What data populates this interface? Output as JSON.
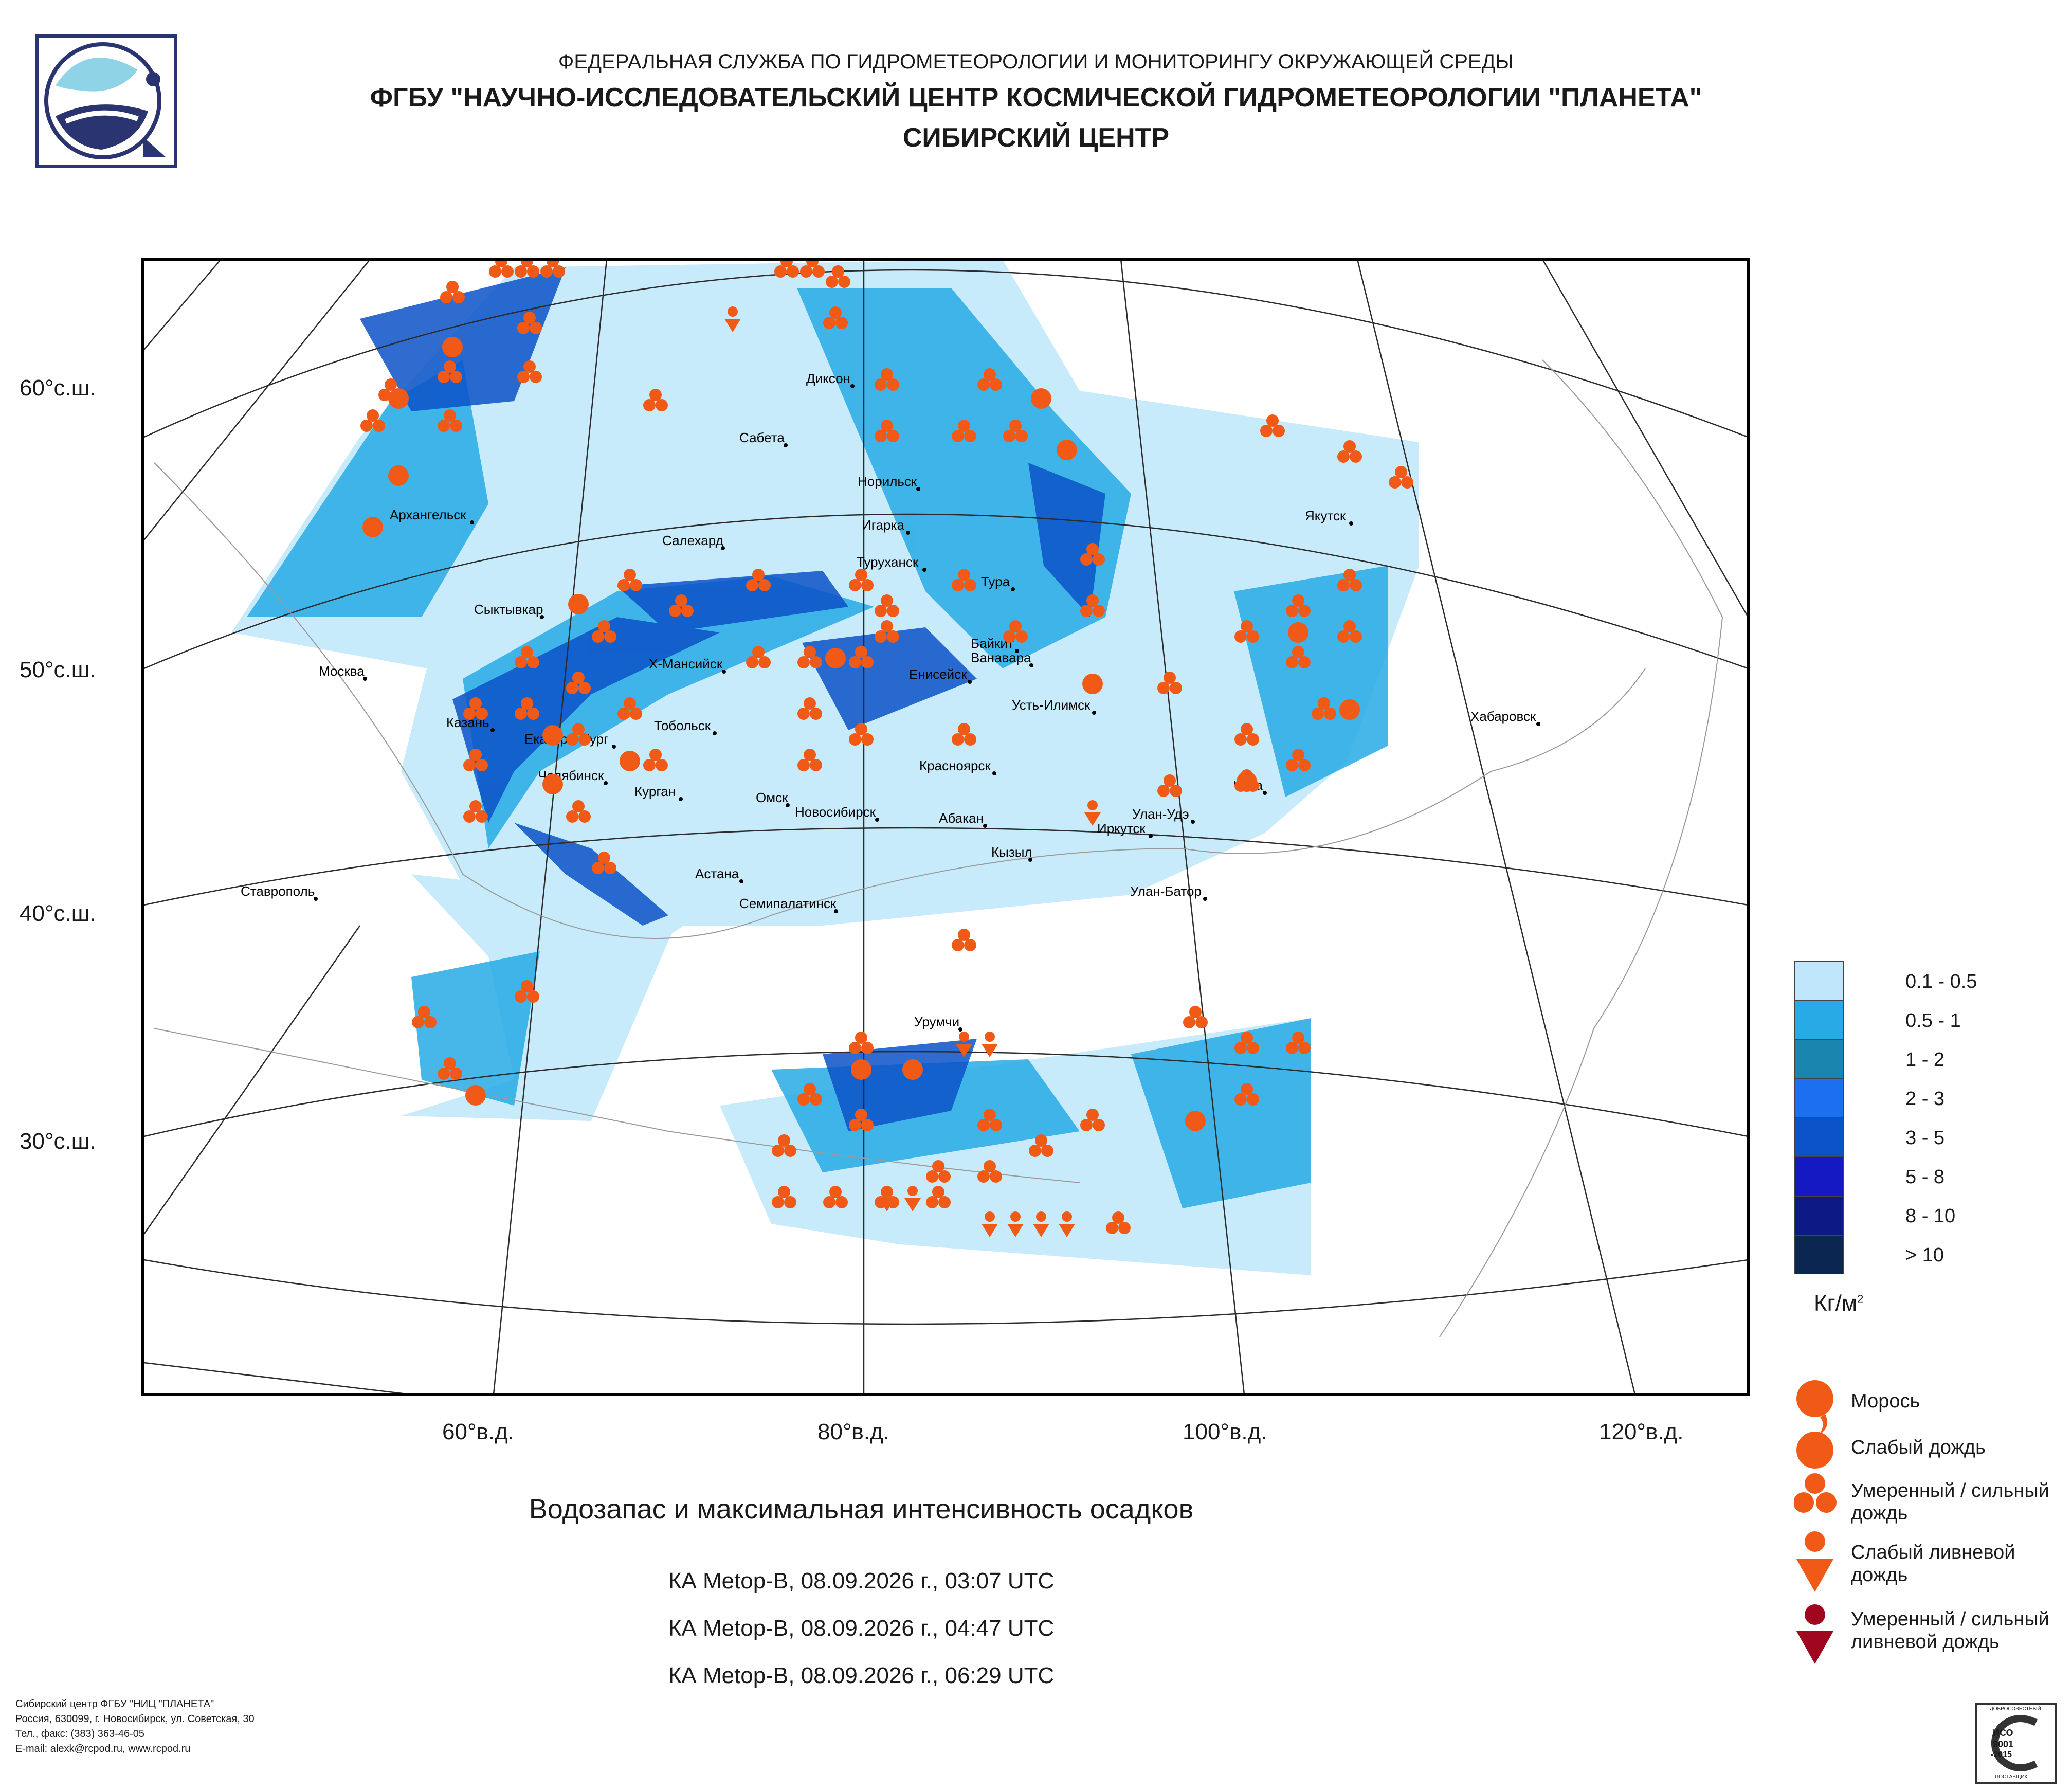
{
  "header": {
    "line1": "ФЕДЕРАЛЬНАЯ СЛУЖБА ПО ГИДРОМЕТЕОРОЛОГИИ И МОНИТОРИНГУ ОКРУЖАЮЩЕЙ СРЕДЫ",
    "line2": "ФГБУ \"НАУЧНО-ИССЛЕДОВАТЕЛЬСКИЙ ЦЕНТР КОСМИЧЕСКОЙ ГИДРОМЕТЕОРОЛОГИИ \"ПЛАНЕТА\"",
    "line3": "СИБИРСКИЙ ЦЕНТР"
  },
  "axes": {
    "lat_labels": [
      "60°с.ш.",
      "50°с.ш.",
      "40°с.ш.",
      "30°с.ш."
    ],
    "lon_labels": [
      "60°в.д.",
      "80°в.д.",
      "100°в.д.",
      "120°в.д."
    ]
  },
  "cities": [
    {
      "name": "Диксон"
    },
    {
      "name": "Сабета"
    },
    {
      "name": "Норильск"
    },
    {
      "name": "Архангельск"
    },
    {
      "name": "Игарка"
    },
    {
      "name": "Салехард"
    },
    {
      "name": "Туруханск"
    },
    {
      "name": "Якутск"
    },
    {
      "name": "Тура"
    },
    {
      "name": "Сыктывкар"
    },
    {
      "name": "Байкит"
    },
    {
      "name": "Ванавара"
    },
    {
      "name": "Х-Мансийск"
    },
    {
      "name": "Енисейск"
    },
    {
      "name": "Москва"
    },
    {
      "name": "Усть-Илимск"
    },
    {
      "name": "Казань"
    },
    {
      "name": "Тобольск"
    },
    {
      "name": "Хабаровск"
    },
    {
      "name": "Екатеринбург"
    },
    {
      "name": "Челябинск"
    },
    {
      "name": "Красноярск"
    },
    {
      "name": "Чита"
    },
    {
      "name": "Курган"
    },
    {
      "name": "Омск"
    },
    {
      "name": "Новосибирск"
    },
    {
      "name": "Улан-Удэ"
    },
    {
      "name": "Абакан"
    },
    {
      "name": "Иркутск"
    },
    {
      "name": "Кызыл"
    },
    {
      "name": "Астана"
    },
    {
      "name": "Ставрополь"
    },
    {
      "name": "Семипалатинск"
    },
    {
      "name": "Улан-Батор"
    },
    {
      "name": "Урумчи"
    }
  ],
  "legend_water": {
    "items": [
      {
        "label": "0.1 - 0.5",
        "color": "#bfe6fb"
      },
      {
        "label": "0.5 - 1",
        "color": "#27aae5"
      },
      {
        "label": "1 - 2",
        "color": "#1a86b0"
      },
      {
        "label": "2 - 3",
        "color": "#1c6ff0"
      },
      {
        "label": "3 - 5",
        "color": "#0c52c8"
      },
      {
        "label": "5 - 8",
        "color": "#1419c4"
      },
      {
        "label": "8 - 10",
        "color": "#0d1a86"
      },
      {
        "label": "> 10",
        "color": "#0b2650"
      }
    ],
    "unit_main": "Кг/м",
    "unit_sup": "2"
  },
  "legend_precip": [
    {
      "label": "Морось",
      "symbol": "drizzle-icon",
      "color": "#f05a16"
    },
    {
      "label": "Слабый дождь",
      "symbol": "light-rain-icon",
      "color": "#f05a16"
    },
    {
      "label1": "Умеренный / сильный",
      "label2": "дождь",
      "symbol": "moderate-rain-icon",
      "color": "#f05a16"
    },
    {
      "label1": "Слабый ливневой",
      "label2": "дождь",
      "symbol": "light-shower-icon",
      "color": "#f05a16"
    },
    {
      "label1": "Умеренный / сильный",
      "label2": "ливневой дождь",
      "symbol": "heavy-shower-icon",
      "color": "#a0061e"
    }
  ],
  "map_title": "Водозапас и максимальная интенсивность осадков",
  "passes": [
    "КА Metop-B, 08.09.2026 г., 03:07 UTC",
    "КА Metop-B, 08.09.2026 г., 04:47 UTC",
    "КА Metop-B, 08.09.2026 г., 06:29 UTC"
  ],
  "footer": {
    "line1": "Сибирский центр ФГБУ \"НИЦ \"ПЛАНЕТА\"",
    "line2": "Россия, 630099, г. Новосибирск, ул. Советская, 30",
    "line3": "Тел., факс: (383) 363-46-05",
    "line4": "E-mail: alexk@rcpod.ru, www.rcpod.ru"
  },
  "badge": {
    "top": "ДОБРОСОВЕСТНЫЙ",
    "l1": "ИСО",
    "l2": "9001",
    "l3": "-2015",
    "bottom": "ПОСТАВЩИК"
  }
}
